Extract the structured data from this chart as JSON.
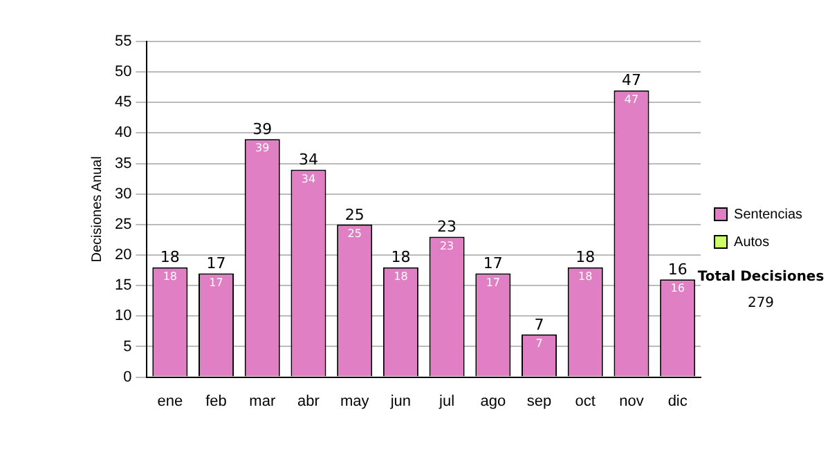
{
  "chart_data": {
    "type": "bar",
    "ylabel": "Decisiones Anual",
    "categories": [
      "ene",
      "feb",
      "mar",
      "abr",
      "may",
      "jun",
      "jul",
      "ago",
      "sep",
      "oct",
      "nov",
      "dic"
    ],
    "series": [
      {
        "name": "Sentencias",
        "color": "#e07fc4",
        "values": [
          18,
          17,
          39,
          34,
          25,
          18,
          23,
          17,
          7,
          18,
          47,
          16
        ]
      },
      {
        "name": "Autos",
        "color": "#ccff66",
        "values": [
          null,
          null,
          null,
          null,
          null,
          null,
          null,
          null,
          null,
          null,
          null,
          null
        ]
      }
    ],
    "ylim": [
      0,
      55
    ],
    "yticks": [
      0,
      5,
      10,
      15,
      20,
      25,
      30,
      35,
      40,
      45,
      50,
      55
    ],
    "grid": "y",
    "legend": "right",
    "data_labels": true,
    "annotations": [
      "Total Decisiones",
      "279",
      {
        "text": "18",
        "x": "ene",
        "y": 18
      },
      {
        "text": "17",
        "x": "feb",
        "y": 17
      },
      {
        "text": "39",
        "x": "mar",
        "y": 39
      },
      {
        "text": "34",
        "x": "abr",
        "y": 34
      },
      {
        "text": "25",
        "x": "may",
        "y": 25
      },
      {
        "text": "18",
        "x": "jun",
        "y": 18
      },
      {
        "text": "23",
        "x": "jul",
        "y": 23
      },
      {
        "text": "17",
        "x": "ago",
        "y": 17
      },
      {
        "text": "7",
        "x": "sep",
        "y": 7
      },
      {
        "text": "18",
        "x": "oct",
        "y": 18
      },
      {
        "text": "47",
        "x": "nov",
        "y": 47
      },
      {
        "text": "16",
        "x": "dic",
        "y": 16
      }
    ]
  }
}
